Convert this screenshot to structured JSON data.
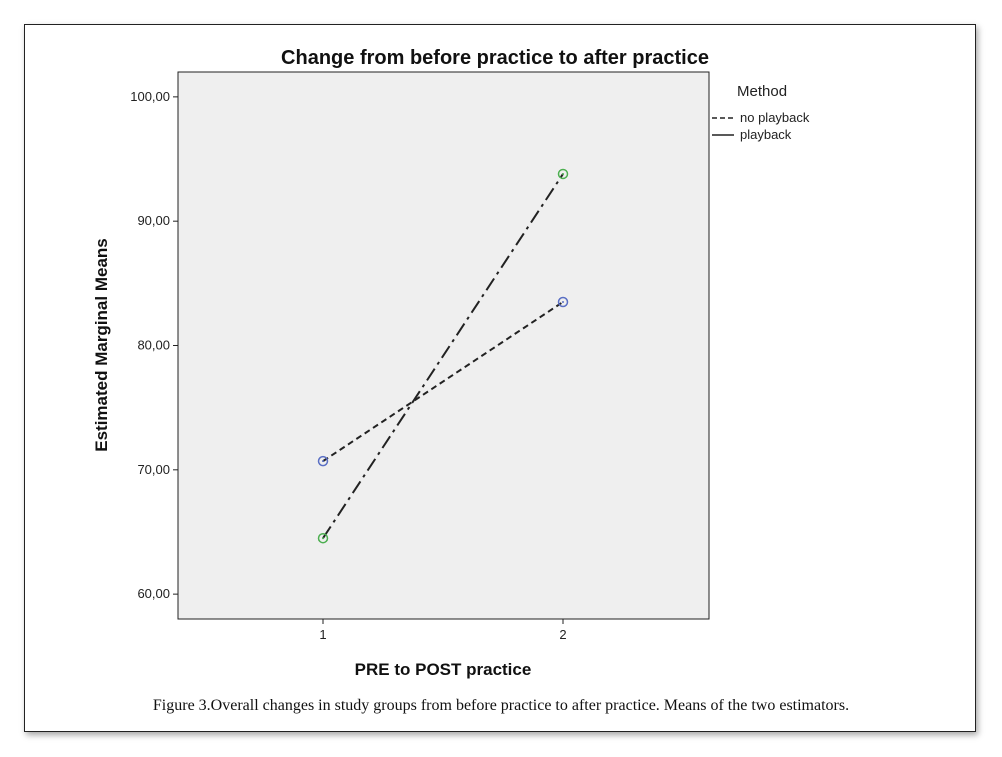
{
  "chart_data": {
    "type": "line",
    "title": "Change from before practice to after practice",
    "xlabel": "PRE to POST practice",
    "ylabel": "Estimated Marginal Means",
    "x": [
      "1",
      "2"
    ],
    "ylim": [
      58,
      102
    ],
    "y_ticks": [
      "60,00",
      "70,00",
      "80,00",
      "90,00",
      "100,00"
    ],
    "y_tick_values": [
      60,
      70,
      80,
      90,
      100
    ],
    "grid": false,
    "legend": {
      "title": "Method",
      "placement": "right-outside"
    },
    "series": [
      {
        "name": "no playback",
        "values": [
          70.7,
          83.5
        ],
        "marker_color": "#5a6fc4",
        "line_style": "dashed"
      },
      {
        "name": "playback",
        "values": [
          64.5,
          93.8
        ],
        "marker_color": "#4caf50",
        "line_style": "dash-dot"
      }
    ]
  },
  "caption": "Figure 3.Overall changes in study groups from before practice to after practice. Means of the two estimators.",
  "colors": {
    "plot_background": "#efefef",
    "line": "#222222"
  }
}
